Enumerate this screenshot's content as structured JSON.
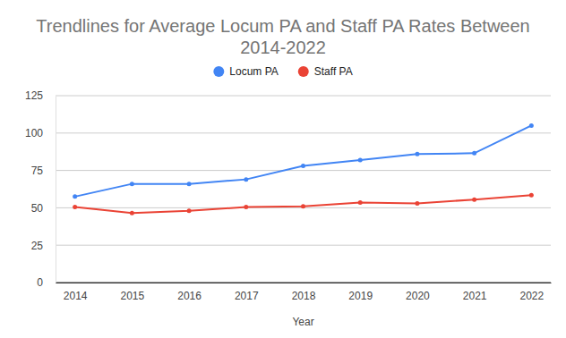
{
  "chart_data": {
    "type": "line",
    "title": "Trendlines for Average Locum PA and Staff PA Rates Between 2014-2022",
    "x_label": "Year",
    "categories": [
      "2014",
      "2015",
      "2016",
      "2017",
      "2018",
      "2019",
      "2020",
      "2021",
      "2022"
    ],
    "series": [
      {
        "name": "Locum PA",
        "color": "#4285f4",
        "marker": "circle",
        "values": [
          57.5,
          66,
          66,
          69,
          78,
          82,
          86,
          86.5,
          105
        ]
      },
      {
        "name": "Staff PA",
        "color": "#ea4335",
        "marker": "circle",
        "values": [
          50.5,
          46.5,
          48,
          50.5,
          51,
          53.5,
          53,
          55.5,
          58.5
        ]
      }
    ],
    "ylim": [
      0,
      125
    ],
    "yticks": [
      0,
      25,
      50,
      75,
      100,
      125
    ],
    "grid": true,
    "legend": "top"
  }
}
